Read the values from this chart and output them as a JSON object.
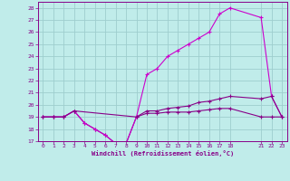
{
  "xlabel": "Windchill (Refroidissement éolien,°C)",
  "background_color": "#c0ecea",
  "grid_color": "#9ecece",
  "line_color_dark": "#880088",
  "line_color_bright": "#cc00cc",
  "xlim": [
    -0.5,
    23.5
  ],
  "ylim": [
    17,
    28.5
  ],
  "yticks": [
    17,
    18,
    19,
    20,
    21,
    22,
    23,
    24,
    25,
    26,
    27,
    28
  ],
  "xticks": [
    0,
    1,
    2,
    3,
    4,
    5,
    6,
    7,
    8,
    9,
    10,
    11,
    12,
    13,
    14,
    15,
    16,
    17,
    18,
    21,
    22,
    23
  ],
  "line1_x": [
    0,
    1,
    2,
    3,
    4,
    5,
    6,
    7,
    8,
    9,
    10,
    11,
    12,
    13,
    14,
    15,
    16,
    17,
    18,
    21,
    22,
    23
  ],
  "line1_y": [
    19.0,
    19.0,
    19.0,
    19.5,
    18.5,
    18.0,
    17.5,
    16.8,
    16.8,
    19.0,
    19.3,
    19.3,
    19.4,
    19.4,
    19.4,
    19.5,
    19.6,
    19.7,
    19.7,
    19.0,
    19.0,
    19.0
  ],
  "line2_x": [
    0,
    1,
    2,
    3,
    4,
    5,
    6,
    7,
    8,
    9,
    10,
    11,
    12,
    13,
    14,
    15,
    16,
    17,
    18,
    21,
    22,
    23
  ],
  "line2_y": [
    19.0,
    19.0,
    19.0,
    19.5,
    18.5,
    18.0,
    17.5,
    16.8,
    16.8,
    19.0,
    22.5,
    23.0,
    24.0,
    24.5,
    25.0,
    25.5,
    26.0,
    27.5,
    28.0,
    27.2,
    20.7,
    19.0
  ],
  "line3_x": [
    0,
    1,
    2,
    3,
    9,
    10,
    11,
    12,
    13,
    14,
    15,
    16,
    17,
    18,
    21,
    22,
    23
  ],
  "line3_y": [
    19.0,
    19.0,
    19.0,
    19.5,
    19.0,
    19.5,
    19.5,
    19.7,
    19.8,
    19.9,
    20.2,
    20.3,
    20.5,
    20.7,
    20.5,
    20.7,
    19.0
  ]
}
